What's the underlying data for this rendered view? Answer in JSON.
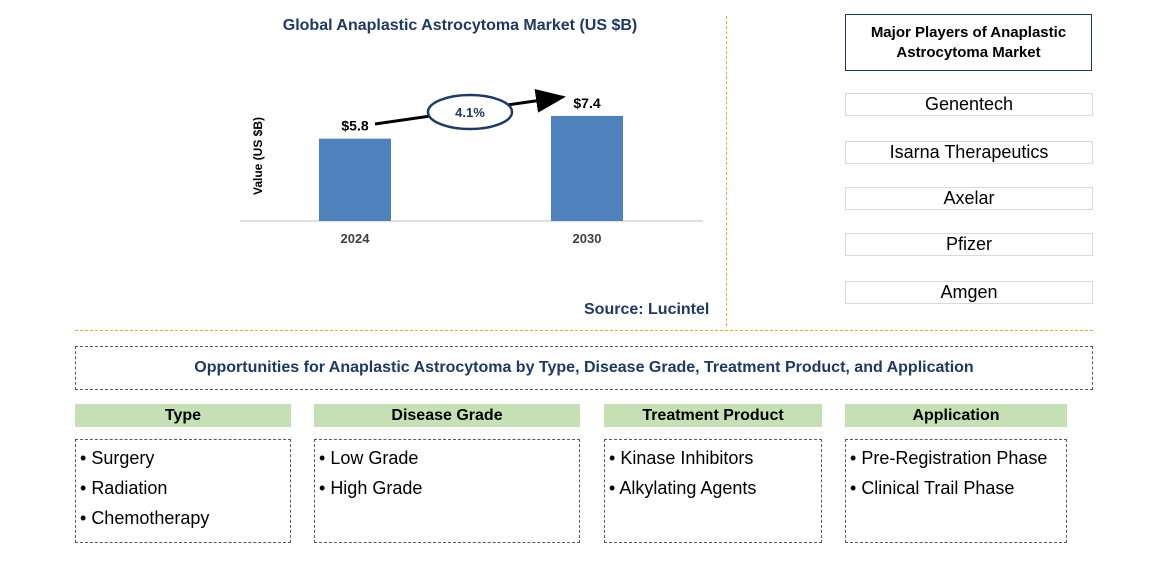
{
  "chart_data": {
    "type": "bar",
    "title": "Global Anaplastic Astrocytoma Market (US $B)",
    "ylabel": "Value (US $B)",
    "categories": [
      "2024",
      "2030"
    ],
    "values": [
      5.8,
      7.4
    ],
    "value_labels": [
      "$5.8",
      "$7.4"
    ],
    "growth_label": "4.1%",
    "bar_color": "#4f81bd"
  },
  "source": "Source: Lucintel",
  "players": {
    "title": "Major Players of Anaplastic Astrocytoma Market",
    "items": [
      "Genentech",
      "Isarna Therapeutics",
      "Axelar",
      "Pfizer",
      "Amgen"
    ]
  },
  "opportunities": {
    "title": "Opportunities for Anaplastic Astrocytoma by Type, Disease Grade, Treatment Product, and Application",
    "categories": [
      {
        "name": "Type",
        "items": [
          "Surgery",
          "Radiation",
          "Chemotherapy"
        ]
      },
      {
        "name": "Disease Grade",
        "items": [
          "Low Grade",
          "High Grade"
        ]
      },
      {
        "name": "Treatment Product",
        "items": [
          "Kinase Inhibitors",
          "Alkylating Agents"
        ]
      },
      {
        "name": "Application",
        "items": [
          "Pre-Registration Phase",
          "Clinical Trail Phase"
        ]
      }
    ]
  },
  "colors": {
    "title_text": "#1f3864",
    "header_fill": "#c5e0b4",
    "divider": "#f0a830"
  }
}
